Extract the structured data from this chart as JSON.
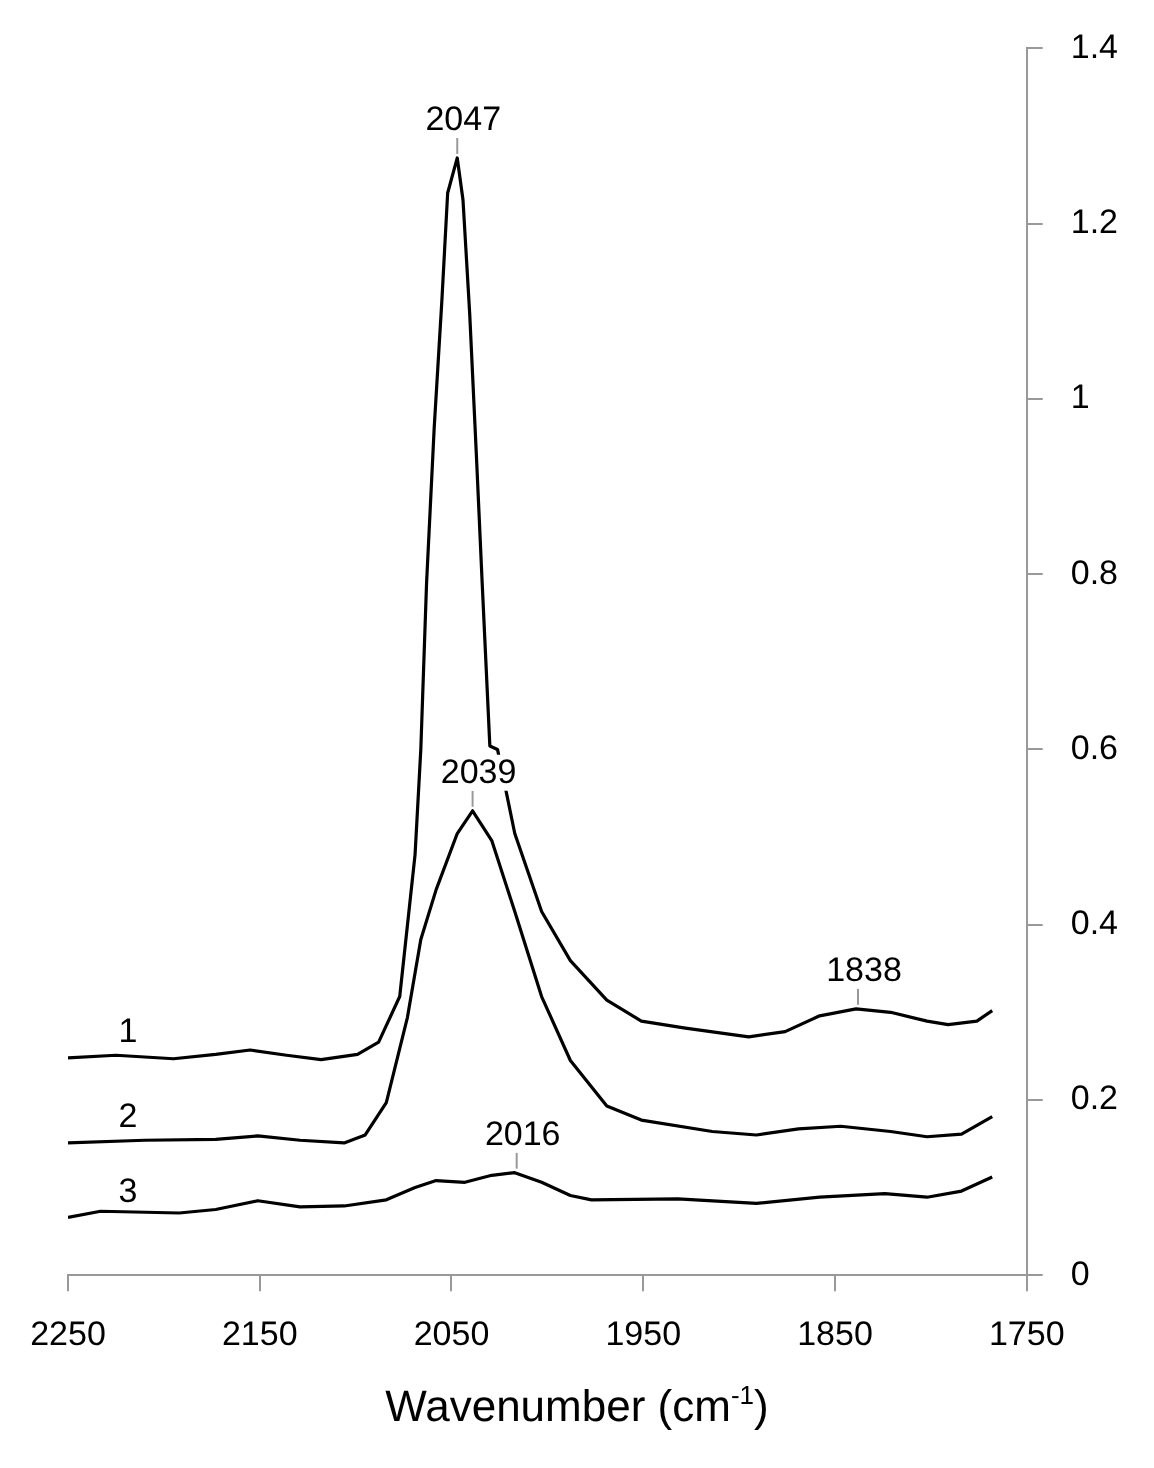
{
  "chart_data": {
    "type": "line",
    "xlabel": "Wavenumber (cm$^{-1}$)",
    "xlim": [
      2250,
      1750
    ],
    "xticks": [
      2250,
      2150,
      2050,
      1950,
      1850,
      1750
    ],
    "ylim": [
      0,
      1.4
    ],
    "yticks": [
      0,
      0.2,
      0.4,
      0.6,
      0.8,
      1,
      1.2,
      1.4
    ],
    "grid": false,
    "legend": false,
    "marker": "none",
    "line_style": "solid",
    "series": [
      {
        "name": "1",
        "color": "#000000",
        "x": [
          2250,
          2225,
          2195,
          2173,
          2155,
          2136,
          2118,
          2099,
          2088,
          2077,
          2069,
          2066,
          2063,
          2059,
          2055,
          2052,
          2047,
          2044,
          2040.5,
          2037,
          2034,
          2030,
          2026,
          2017,
          2003,
          1988,
          1969,
          1951,
          1928,
          1895,
          1876,
          1858,
          1839,
          1821,
          1802,
          1791,
          1776,
          1768
        ],
        "values": [
          0.248,
          0.251,
          0.247,
          0.252,
          0.257,
          0.251,
          0.246,
          0.252,
          0.266,
          0.318,
          0.48,
          0.6,
          0.79,
          0.968,
          1.113,
          1.235,
          1.275,
          1.227,
          1.097,
          0.935,
          0.79,
          0.604,
          0.6,
          0.504,
          0.415,
          0.359,
          0.314,
          0.29,
          0.282,
          0.272,
          0.278,
          0.296,
          0.304,
          0.3,
          0.29,
          0.286,
          0.29,
          0.302
        ]
      },
      {
        "name": "2",
        "color": "#000000",
        "x": [
          2250,
          2210,
          2173,
          2151,
          2129,
          2106,
          2095,
          2084,
          2073,
          2066,
          2058,
          2047,
          2039,
          2029,
          2017,
          2003,
          1988,
          1969,
          1951,
          1914,
          1891,
          1869,
          1847,
          1821,
          1802,
          1784,
          1768
        ],
        "values": [
          0.151,
          0.154,
          0.155,
          0.159,
          0.154,
          0.151,
          0.16,
          0.197,
          0.294,
          0.383,
          0.44,
          0.504,
          0.53,
          0.496,
          0.415,
          0.318,
          0.245,
          0.193,
          0.177,
          0.164,
          0.16,
          0.167,
          0.17,
          0.164,
          0.158,
          0.161,
          0.181
        ]
      },
      {
        "name": "3",
        "color": "#000000",
        "x": [
          2250,
          2233,
          2192,
          2173,
          2151,
          2129,
          2106,
          2084,
          2069,
          2058,
          2043,
          2029,
          2017,
          2003,
          1988,
          1977,
          1932,
          1891,
          1858,
          1824,
          1802,
          1784,
          1768
        ],
        "values": [
          0.066,
          0.073,
          0.071,
          0.075,
          0.085,
          0.078,
          0.079,
          0.086,
          0.1,
          0.108,
          0.106,
          0.114,
          0.117,
          0.106,
          0.091,
          0.086,
          0.087,
          0.082,
          0.089,
          0.093,
          0.089,
          0.096,
          0.112
        ]
      }
    ],
    "annotations": [
      {
        "text": "2047",
        "x": 2047,
        "y": 1.275
      },
      {
        "text": "2039",
        "x": 2039,
        "y": 0.53
      },
      {
        "text": "2016",
        "x": 2016,
        "y": 0.117
      },
      {
        "text": "1838",
        "x": 1838,
        "y": 0.304
      }
    ]
  }
}
